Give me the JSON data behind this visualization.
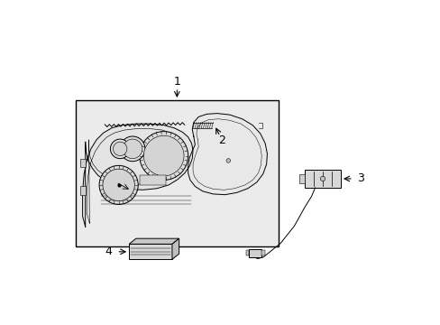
{
  "bg_color": "#ffffff",
  "line_color": "#000000",
  "fill_box": "#ebebeb",
  "fill_cluster": "#e4e4e4",
  "fill_back": "#e8e8e8",
  "label_1": "1",
  "label_2": "2",
  "label_3": "3",
  "label_4": "4",
  "figsize": [
    4.89,
    3.6
  ],
  "dpi": 100
}
